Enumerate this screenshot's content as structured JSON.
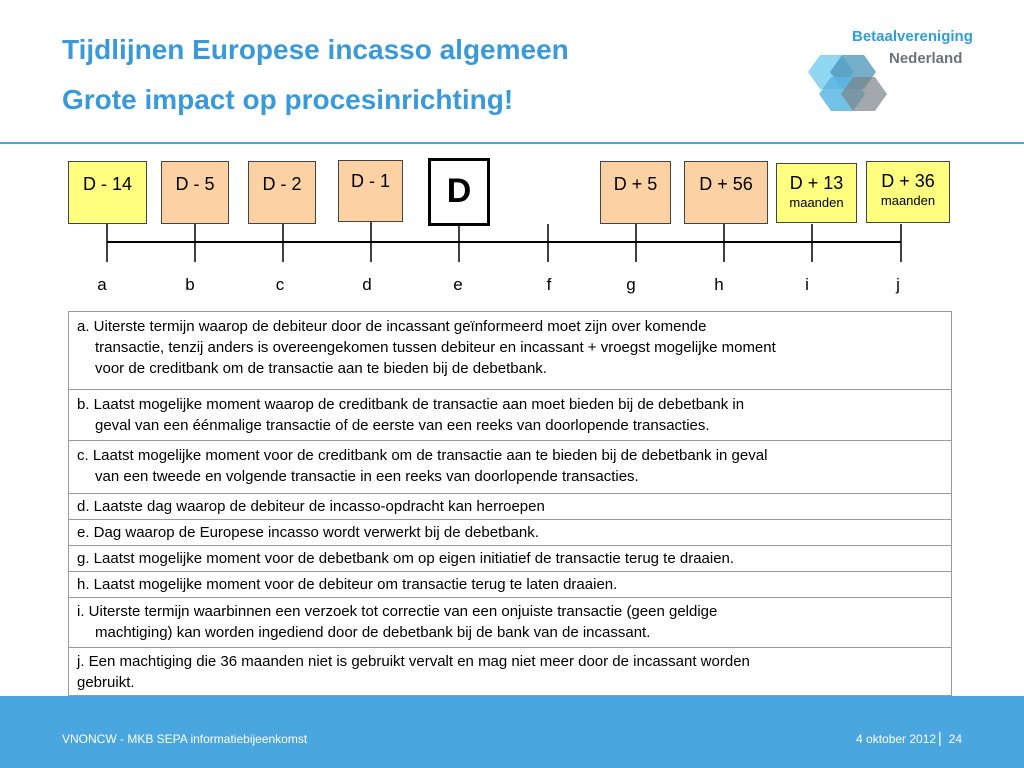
{
  "header": {
    "title_line1": "Tijdlijnen Europese incasso algemeen",
    "title_line2": "Grote impact op procesinrichting!",
    "brand_line1": "Betaalvereniging",
    "brand_line2": "Nederland"
  },
  "timeline": {
    "boxes": [
      {
        "label": "D - 14",
        "sub": "",
        "color": "#ffff80"
      },
      {
        "label": "D - 5",
        "sub": "",
        "color": "#fcd2a4"
      },
      {
        "label": "D - 2",
        "sub": "",
        "color": "#fcd2a4"
      },
      {
        "label": "D - 1",
        "sub": "",
        "color": "#fcd2a4"
      },
      {
        "label": "D",
        "sub": "",
        "color": "#ffffff"
      },
      {
        "label": "D + 5",
        "sub": "",
        "color": "#fcd2a4"
      },
      {
        "label": "D + 56",
        "sub": "",
        "color": "#fcd2a4"
      },
      {
        "label": "D + 13",
        "sub": "maanden",
        "color": "#ffff80"
      },
      {
        "label": "D + 36",
        "sub": "maanden",
        "color": "#ffff80"
      }
    ],
    "ticks": [
      "a",
      "b",
      "c",
      "d",
      "e",
      "f",
      "g",
      "h",
      "i",
      "j"
    ]
  },
  "descriptions": [
    {
      "lines": [
        "a.  Uiterste termijn waarop de debiteur door de incassant geïnformeerd moet zijn over komende",
        "transactie, tenzij anders is overeengekomen tussen debiteur en incassant + vroegst mogelijke moment",
        "voor de creditbank om de transactie aan te bieden bij de debetbank."
      ]
    },
    {
      "lines": [
        "b.  Laatst mogelijke moment waarop de creditbank de transactie aan moet bieden bij de debetbank in",
        "geval van een éénmalige transactie of de eerste van een reeks van doorlopende transacties."
      ]
    },
    {
      "lines": [
        "c.  Laatst mogelijke moment voor de creditbank om de transactie aan te bieden bij de debetbank in geval",
        "van een tweede en volgende transactie in een reeks van doorlopende transacties."
      ]
    },
    {
      "lines": [
        "d.  Laatste dag waarop de debiteur de incasso-opdracht kan herroepen"
      ]
    },
    {
      "lines": [
        "e.  Dag waarop de Europese incasso wordt verwerkt bij de debetbank."
      ]
    },
    {
      "lines": [
        "g.  Laatst mogelijke moment voor de debetbank om op eigen initiatief de transactie terug te draaien."
      ]
    },
    {
      "lines": [
        "h. Laatst mogelijke moment voor de debiteur om transactie terug te laten draaien."
      ]
    },
    {
      "lines": [
        "i. Uiterste termijn waarbinnen een verzoek tot correctie van een onjuiste transactie (geen geldige",
        "machtiging) kan worden ingediend door de debetbank bij de bank van de incassant."
      ]
    },
    {
      "lines": [
        "j. Een machtiging die 36 maanden niet is gebruikt vervalt en mag niet meer door de incassant worden",
        "gebruikt."
      ]
    }
  ],
  "footer": {
    "left": "VNONCW - MKB SEPA informatiebijeenkomst",
    "right": "4 oktober 2012 ▏24"
  },
  "colors": {
    "accent": "#3a9ad9",
    "footer_bg": "#4aa6de",
    "yellow_box": "#ffff80",
    "peach_box": "#fcd2a4"
  }
}
